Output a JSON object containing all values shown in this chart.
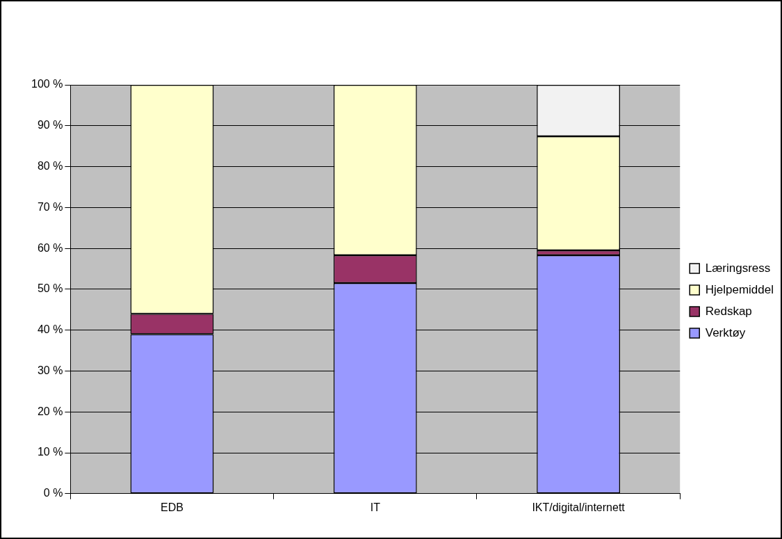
{
  "chart_data": {
    "type": "bar",
    "stacked": true,
    "categories": [
      "EDB",
      "IT",
      "IKT/digital/internett"
    ],
    "series": [
      {
        "name": "Verktøy",
        "color": "#9999ff",
        "values": [
          39,
          51.5,
          58.3
        ]
      },
      {
        "name": "Redskap",
        "color": "#993366",
        "values": [
          5,
          6.8,
          1.2
        ]
      },
      {
        "name": "Hjelpemiddel",
        "color": "#ffffcc",
        "values": [
          56,
          41.7,
          27.9
        ]
      },
      {
        "name": "Læringsress",
        "color": "#f2f2f2",
        "values": [
          0,
          0,
          12.6
        ]
      }
    ],
    "ylim": [
      0,
      100
    ],
    "yticks": [
      {
        "value": 0,
        "label": "0 %"
      },
      {
        "value": 10,
        "label": "10 %"
      },
      {
        "value": 20,
        "label": "20 %"
      },
      {
        "value": 30,
        "label": "30 %"
      },
      {
        "value": 40,
        "label": "40 %"
      },
      {
        "value": 50,
        "label": "50 %"
      },
      {
        "value": 60,
        "label": "60 %"
      },
      {
        "value": 70,
        "label": "70 %"
      },
      {
        "value": 80,
        "label": "80 %"
      },
      {
        "value": 90,
        "label": "90 %"
      },
      {
        "value": 100,
        "label": "100 %"
      }
    ],
    "grid": "y",
    "legend": "right"
  }
}
